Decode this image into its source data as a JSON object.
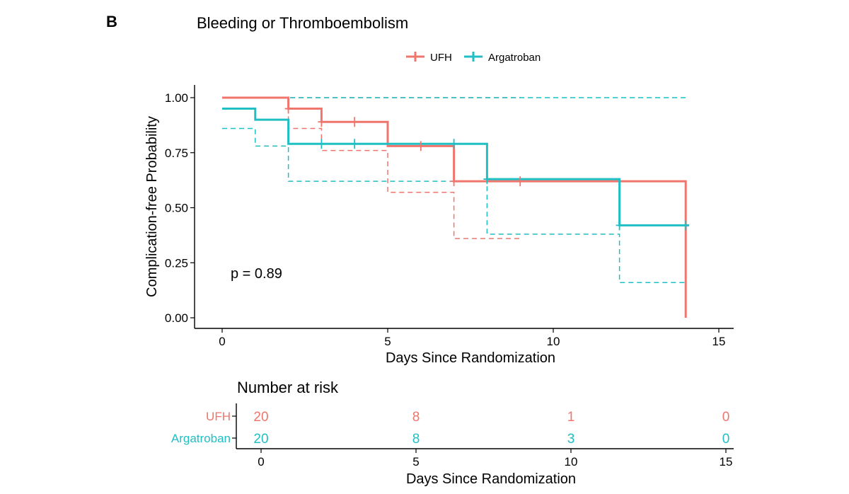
{
  "panel_letter": "B",
  "colors": {
    "ufh": "#F0756C",
    "argatroban": "#1FBFC4",
    "axis": "#000000"
  },
  "chart_data": {
    "type": "line",
    "subtype": "kaplan-meier",
    "title": "Bleeding or Thromboembolism",
    "xlabel": "Days Since Randomization",
    "ylabel": "Complication-free Probability",
    "xlim": [
      -1.5,
      15.7
    ],
    "ylim": [
      -0.05,
      1.05
    ],
    "xticks": [
      0,
      5,
      10,
      15
    ],
    "yticks": [
      0.0,
      0.25,
      0.5,
      0.75,
      1.0
    ],
    "ytick_labels": [
      "0.00",
      "0.25",
      "0.50",
      "0.75",
      "1.00"
    ],
    "grid": false,
    "legend_position": "top",
    "annotation": "p = 0.89",
    "series": [
      {
        "name": "UFH",
        "color": "#F0756C",
        "steps": [
          [
            0,
            1.0
          ],
          [
            2,
            0.95
          ],
          [
            3,
            0.89
          ],
          [
            5,
            0.78
          ],
          [
            7,
            0.62
          ],
          [
            14,
            0.62
          ],
          [
            14,
            0.0
          ]
        ],
        "censored": [
          [
            2,
            0.95
          ],
          [
            3,
            0.89
          ],
          [
            4,
            0.89
          ],
          [
            6,
            0.78
          ],
          [
            7,
            0.62
          ],
          [
            9,
            0.62
          ]
        ],
        "ci_upper": [
          [
            0,
            1.0
          ],
          [
            9,
            1.0
          ]
        ],
        "ci_lower": [
          [
            0,
            1.0
          ],
          [
            2,
            0.86
          ],
          [
            3,
            0.76
          ],
          [
            5,
            0.57
          ],
          [
            7,
            0.36
          ],
          [
            9,
            0.36
          ]
        ]
      },
      {
        "name": "Argatroban",
        "color": "#1FBFC4",
        "steps": [
          [
            0,
            0.95
          ],
          [
            1,
            0.9
          ],
          [
            2,
            0.79
          ],
          [
            8,
            0.63
          ],
          [
            12,
            0.42
          ],
          [
            14.1,
            0.42
          ]
        ],
        "censored": [
          [
            3,
            0.79
          ],
          [
            4,
            0.79
          ],
          [
            7,
            0.79
          ],
          [
            8,
            0.63
          ],
          [
            12,
            0.42
          ],
          [
            14,
            0.42
          ]
        ],
        "ci_upper": [
          [
            0,
            1.0
          ],
          [
            14,
            1.0
          ]
        ],
        "ci_lower": [
          [
            0,
            0.86
          ],
          [
            1,
            0.78
          ],
          [
            2,
            0.62
          ],
          [
            8,
            0.38
          ],
          [
            12,
            0.16
          ],
          [
            14,
            0.16
          ]
        ]
      }
    ]
  },
  "risk_table": {
    "title": "Number at risk",
    "xlabel": "Days Since Randomization",
    "xticks": [
      0,
      5,
      10,
      15
    ],
    "rows": [
      {
        "name": "UFH",
        "color": "#F0756C",
        "values": [
          "20",
          "8",
          "1",
          "0"
        ]
      },
      {
        "name": "Argatroban",
        "color": "#1FBFC4",
        "values": [
          "20",
          "8",
          "3",
          "0"
        ]
      }
    ]
  }
}
